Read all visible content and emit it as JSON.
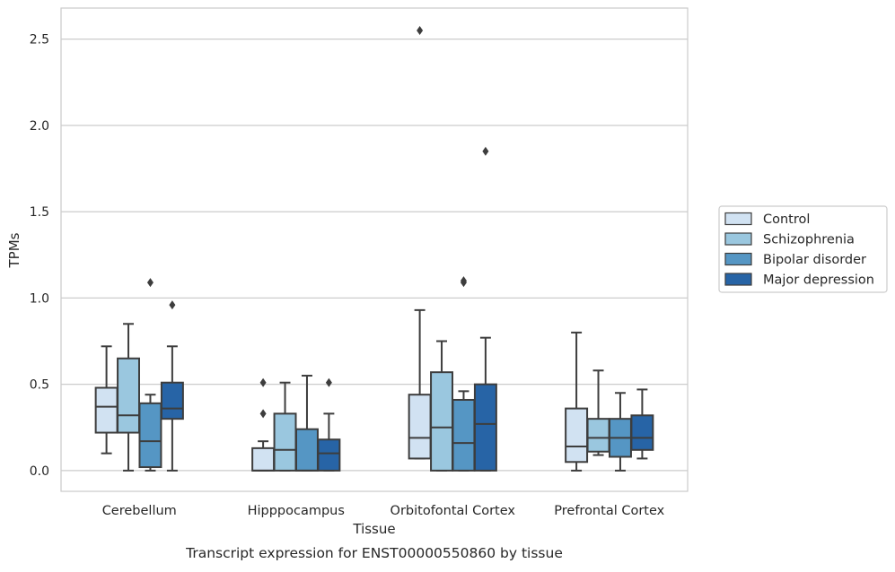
{
  "chart_data": {
    "type": "box",
    "caption": "Transcript expression for ENST00000550860 by tissue",
    "xlabel": "Tissue",
    "ylabel": "TPMs",
    "ylim": [
      -0.12,
      2.68
    ],
    "yticks": [
      0.0,
      0.5,
      1.0,
      1.5,
      2.0,
      2.5
    ],
    "ytick_labels": [
      "0.0",
      "0.5",
      "1.0",
      "1.5",
      "2.0",
      "2.5"
    ],
    "grid": "horizontal",
    "legend_position": "right",
    "categories": [
      "Cerebellum",
      "Hipppocampus",
      "Orbitofontal Cortex",
      "Prefrontal Cortex"
    ],
    "series": [
      {
        "name": "Control",
        "color": "#d1e2f2",
        "boxes": [
          {
            "whislo": 0.1,
            "q1": 0.22,
            "med": 0.37,
            "q3": 0.48,
            "whishi": 0.72,
            "fliers": []
          },
          {
            "whislo": 0.0,
            "q1": 0.0,
            "med": 0.0,
            "q3": 0.13,
            "whishi": 0.17,
            "fliers": [
              0.33,
              0.51
            ]
          },
          {
            "whislo": 0.07,
            "q1": 0.07,
            "med": 0.19,
            "q3": 0.44,
            "whishi": 0.93,
            "fliers": [
              2.55
            ]
          },
          {
            "whislo": 0.0,
            "q1": 0.05,
            "med": 0.14,
            "q3": 0.36,
            "whishi": 0.8,
            "fliers": []
          }
        ]
      },
      {
        "name": "Schizophrenia",
        "color": "#9ac7df",
        "boxes": [
          {
            "whislo": 0.0,
            "q1": 0.22,
            "med": 0.32,
            "q3": 0.65,
            "whishi": 0.85,
            "fliers": []
          },
          {
            "whislo": 0.0,
            "q1": 0.0,
            "med": 0.12,
            "q3": 0.33,
            "whishi": 0.51,
            "fliers": []
          },
          {
            "whislo": 0.0,
            "q1": 0.0,
            "med": 0.25,
            "q3": 0.57,
            "whishi": 0.75,
            "fliers": []
          },
          {
            "whislo": 0.09,
            "q1": 0.11,
            "med": 0.19,
            "q3": 0.3,
            "whishi": 0.58,
            "fliers": []
          }
        ]
      },
      {
        "name": "Bipolar disorder",
        "color": "#5596c4",
        "boxes": [
          {
            "whislo": 0.0,
            "q1": 0.02,
            "med": 0.17,
            "q3": 0.39,
            "whishi": 0.44,
            "fliers": [
              1.09
            ]
          },
          {
            "whislo": 0.0,
            "q1": 0.0,
            "med": 0.0,
            "q3": 0.24,
            "whishi": 0.55,
            "fliers": []
          },
          {
            "whislo": 0.0,
            "q1": 0.0,
            "med": 0.16,
            "q3": 0.41,
            "whishi": 0.46,
            "fliers": [
              1.09,
              1.1
            ]
          },
          {
            "whislo": 0.0,
            "q1": 0.08,
            "med": 0.19,
            "q3": 0.3,
            "whishi": 0.45,
            "fliers": []
          }
        ]
      },
      {
        "name": "Major depression",
        "color": "#2764a6",
        "boxes": [
          {
            "whislo": 0.0,
            "q1": 0.3,
            "med": 0.36,
            "q3": 0.51,
            "whishi": 0.72,
            "fliers": [
              0.96
            ]
          },
          {
            "whislo": 0.0,
            "q1": 0.0,
            "med": 0.1,
            "q3": 0.18,
            "whishi": 0.33,
            "fliers": [
              0.51
            ]
          },
          {
            "whislo": 0.0,
            "q1": 0.0,
            "med": 0.27,
            "q3": 0.5,
            "whishi": 0.77,
            "fliers": [
              1.85
            ]
          },
          {
            "whislo": 0.07,
            "q1": 0.12,
            "med": 0.19,
            "q3": 0.32,
            "whishi": 0.47,
            "fliers": []
          }
        ]
      }
    ]
  }
}
